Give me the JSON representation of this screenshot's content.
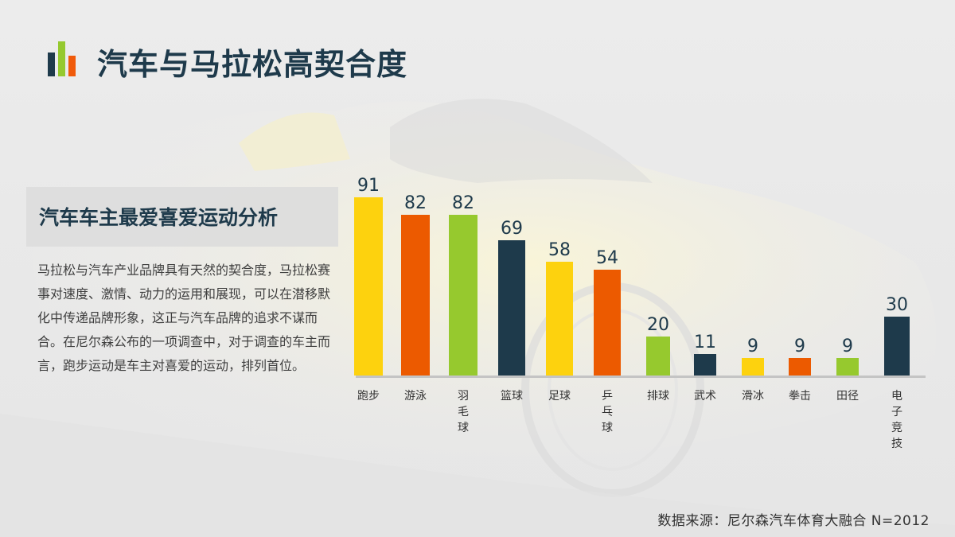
{
  "header": {
    "title": "汽车与马拉松高契合度",
    "icon": "bar-chart-icon",
    "icon_colors": [
      "#1e3a4b",
      "#95c92f",
      "#f05a0a"
    ]
  },
  "panel": {
    "subtitle": "汽车车主最爱喜爱运动分析",
    "description": "马拉松与汽车产业品牌具有天然的契合度，马拉松赛事对速度、激情、动力的运用和展现，可以在潜移默化中传递品牌形象，这正与汽车品牌的追求不谋而合。在尼尔森公布的一项调查中，对于调查的车主而言，跑步运动是车主对喜爱的运动，排列首位。"
  },
  "footer": {
    "source": "数据来源：尼尔森汽车体育大融合 N=2012"
  },
  "colors": {
    "yellow": "#fdd20e",
    "orange": "#ec5a00",
    "green": "#96c92e",
    "navy": "#1e3a4b",
    "text_dark": "#1e3a4b"
  },
  "chart_data": {
    "type": "bar",
    "title": "汽车车主最爱喜爱运动分析",
    "xlabel": "",
    "ylabel": "",
    "categories": [
      "跑步",
      "游泳",
      "羽毛球",
      "篮球",
      "足球",
      "乒乓球",
      "排球",
      "武术",
      "滑冰",
      "拳击",
      "田径",
      "电子竞技"
    ],
    "values": [
      91,
      82,
      82,
      69,
      58,
      54,
      20,
      11,
      9,
      9,
      9,
      30
    ],
    "bar_colors": [
      "#fdd20e",
      "#ec5a00",
      "#96c92e",
      "#1e3a4b",
      "#fdd20e",
      "#ec5a00",
      "#96c92e",
      "#1e3a4b",
      "#fdd20e",
      "#ec5a00",
      "#96c92e",
      "#1e3a4b"
    ],
    "ylim": [
      0,
      100
    ],
    "grid": false,
    "legend": "none",
    "data_labels": true,
    "source": "尼尔森汽车体育大融合 N=2012"
  }
}
